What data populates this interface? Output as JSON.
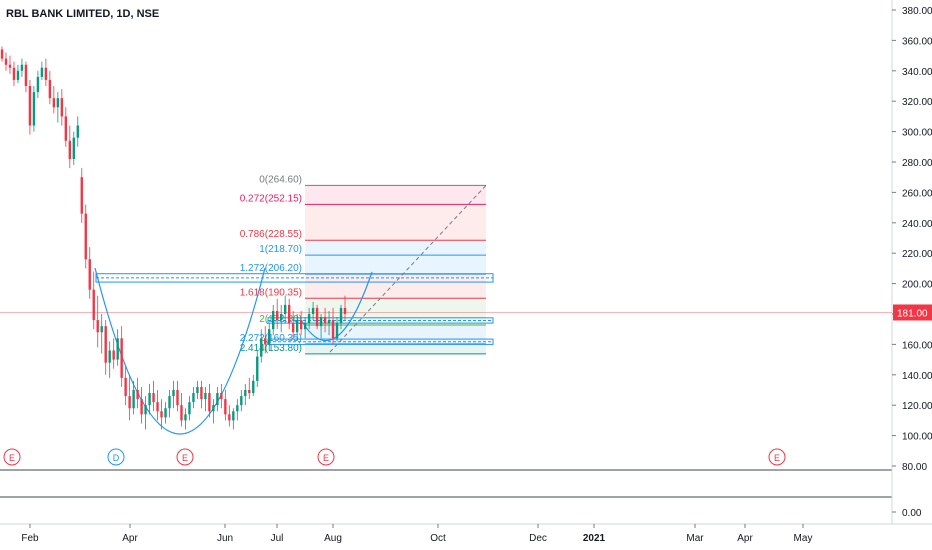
{
  "chart_data": {
    "type": "candlestick",
    "title": "RBL BANK LIMITED, 1D, NSE",
    "price_axis_ticks": [
      "380.00",
      "360.00",
      "340.00",
      "320.00",
      "300.00",
      "280.00",
      "260.00",
      "240.00",
      "220.00",
      "200.00",
      "180.00",
      "160.00",
      "140.00",
      "120.00",
      "100.00",
      "80.00"
    ],
    "price_axis_range": [
      80,
      380
    ],
    "volume_axis_tick": "0.00",
    "current_price": "181.00",
    "time_axis_labels": [
      "Feb",
      "Apr",
      "Jun",
      "Jul",
      "Aug",
      "Oct",
      "Dec",
      "2021",
      "Mar",
      "Apr",
      "May"
    ],
    "event_markers": [
      "E",
      "D",
      "E",
      "E",
      "E"
    ],
    "fib_levels": [
      {
        "ratio": "0",
        "price": 264.6,
        "label": "0(264.60)",
        "color": "#787b86"
      },
      {
        "ratio": "0.272",
        "price": 252.15,
        "label": "0.272(252.15)",
        "color": "#e91e63"
      },
      {
        "ratio": "0.786",
        "price": 228.55,
        "label": "0.786(228.55)",
        "color": "#f23645"
      },
      {
        "ratio": "1",
        "price": 218.7,
        "label": "1(218.70)",
        "color": "#2196f3"
      },
      {
        "ratio": "1.272",
        "price": 206.2,
        "label": "1.272(206.20)",
        "color": "#2196f3"
      },
      {
        "ratio": "1.618",
        "price": 190.35,
        "label": "1.618(190.35)",
        "color": "#f23645"
      },
      {
        "ratio": "2",
        "price": 172.8,
        "label": "2(172.80)",
        "color": "#4caf50"
      },
      {
        "ratio": "2.272",
        "price": 160.35,
        "label": "2.272(160.35)",
        "color": "#2196f3"
      },
      {
        "ratio": "2.414",
        "price": 153.8,
        "label": "2.414(153.80)",
        "color": "#089981"
      }
    ],
    "candles": [
      [
        354,
        356,
        346,
        348
      ],
      [
        348,
        352,
        340,
        344
      ],
      [
        344,
        350,
        338,
        342
      ],
      [
        342,
        346,
        330,
        334
      ],
      [
        334,
        344,
        332,
        340
      ],
      [
        340,
        348,
        336,
        344
      ],
      [
        344,
        346,
        326,
        330
      ],
      [
        330,
        334,
        298,
        304
      ],
      [
        304,
        330,
        300,
        326
      ],
      [
        326,
        340,
        322,
        336
      ],
      [
        336,
        346,
        334,
        342
      ],
      [
        342,
        348,
        330,
        334
      ],
      [
        334,
        340,
        318,
        322
      ],
      [
        322,
        330,
        312,
        316
      ],
      [
        316,
        326,
        306,
        322
      ],
      [
        322,
        328,
        304,
        310
      ],
      [
        310,
        316,
        290,
        294
      ],
      [
        294,
        304,
        276,
        282
      ],
      [
        282,
        300,
        278,
        296
      ],
      [
        296,
        310,
        290,
        304
      ],
      [
        270,
        276,
        240,
        246
      ],
      [
        246,
        252,
        210,
        216
      ],
      [
        216,
        224,
        190,
        196
      ],
      [
        196,
        208,
        170,
        176
      ],
      [
        176,
        192,
        158,
        168
      ],
      [
        168,
        180,
        154,
        172
      ],
      [
        172,
        176,
        140,
        148
      ],
      [
        148,
        162,
        138,
        156
      ],
      [
        156,
        164,
        144,
        150
      ],
      [
        150,
        170,
        146,
        164
      ],
      [
        164,
        172,
        132,
        138
      ],
      [
        138,
        146,
        120,
        126
      ],
      [
        126,
        140,
        110,
        118
      ],
      [
        118,
        136,
        114,
        130
      ],
      [
        130,
        138,
        118,
        124
      ],
      [
        124,
        132,
        108,
        114
      ],
      [
        114,
        126,
        104,
        120
      ],
      [
        120,
        134,
        114,
        128
      ],
      [
        128,
        136,
        116,
        122
      ],
      [
        122,
        130,
        110,
        116
      ],
      [
        116,
        124,
        104,
        112
      ],
      [
        112,
        122,
        108,
        118
      ],
      [
        118,
        130,
        112,
        126
      ],
      [
        126,
        136,
        118,
        130
      ],
      [
        130,
        136,
        116,
        120
      ],
      [
        120,
        128,
        106,
        110
      ],
      [
        110,
        118,
        104,
        114
      ],
      [
        114,
        126,
        110,
        122
      ],
      [
        122,
        132,
        118,
        128
      ],
      [
        128,
        136,
        124,
        132
      ],
      [
        132,
        136,
        118,
        124
      ],
      [
        124,
        132,
        116,
        128
      ],
      [
        128,
        134,
        112,
        116
      ],
      [
        116,
        124,
        108,
        120
      ],
      [
        120,
        132,
        116,
        128
      ],
      [
        128,
        134,
        118,
        124
      ],
      [
        124,
        130,
        110,
        114
      ],
      [
        114,
        120,
        106,
        110
      ],
      [
        110,
        118,
        104,
        116
      ],
      [
        116,
        124,
        110,
        120
      ],
      [
        120,
        130,
        116,
        126
      ],
      [
        126,
        134,
        120,
        130
      ],
      [
        130,
        138,
        124,
        128
      ],
      [
        128,
        140,
        126,
        136
      ],
      [
        136,
        156,
        132,
        152
      ],
      [
        152,
        170,
        148,
        164
      ],
      [
        164,
        172,
        154,
        160
      ],
      [
        160,
        174,
        156,
        170
      ],
      [
        170,
        186,
        166,
        182
      ],
      [
        182,
        190,
        170,
        176
      ],
      [
        176,
        186,
        168,
        180
      ],
      [
        180,
        192,
        174,
        186
      ],
      [
        186,
        190,
        170,
        174
      ],
      [
        174,
        182,
        164,
        168
      ],
      [
        168,
        180,
        162,
        176
      ],
      [
        176,
        182,
        166,
        170
      ],
      [
        170,
        178,
        164,
        174
      ],
      [
        174,
        184,
        170,
        180
      ],
      [
        180,
        188,
        176,
        184
      ],
      [
        184,
        186,
        170,
        172
      ],
      [
        172,
        180,
        164,
        178
      ],
      [
        178,
        184,
        168,
        174
      ],
      [
        174,
        182,
        166,
        176
      ],
      [
        176,
        184,
        160,
        164
      ],
      [
        164,
        178,
        162,
        174
      ],
      [
        174,
        186,
        170,
        184
      ],
      [
        184,
        192,
        176,
        180
      ]
    ]
  }
}
